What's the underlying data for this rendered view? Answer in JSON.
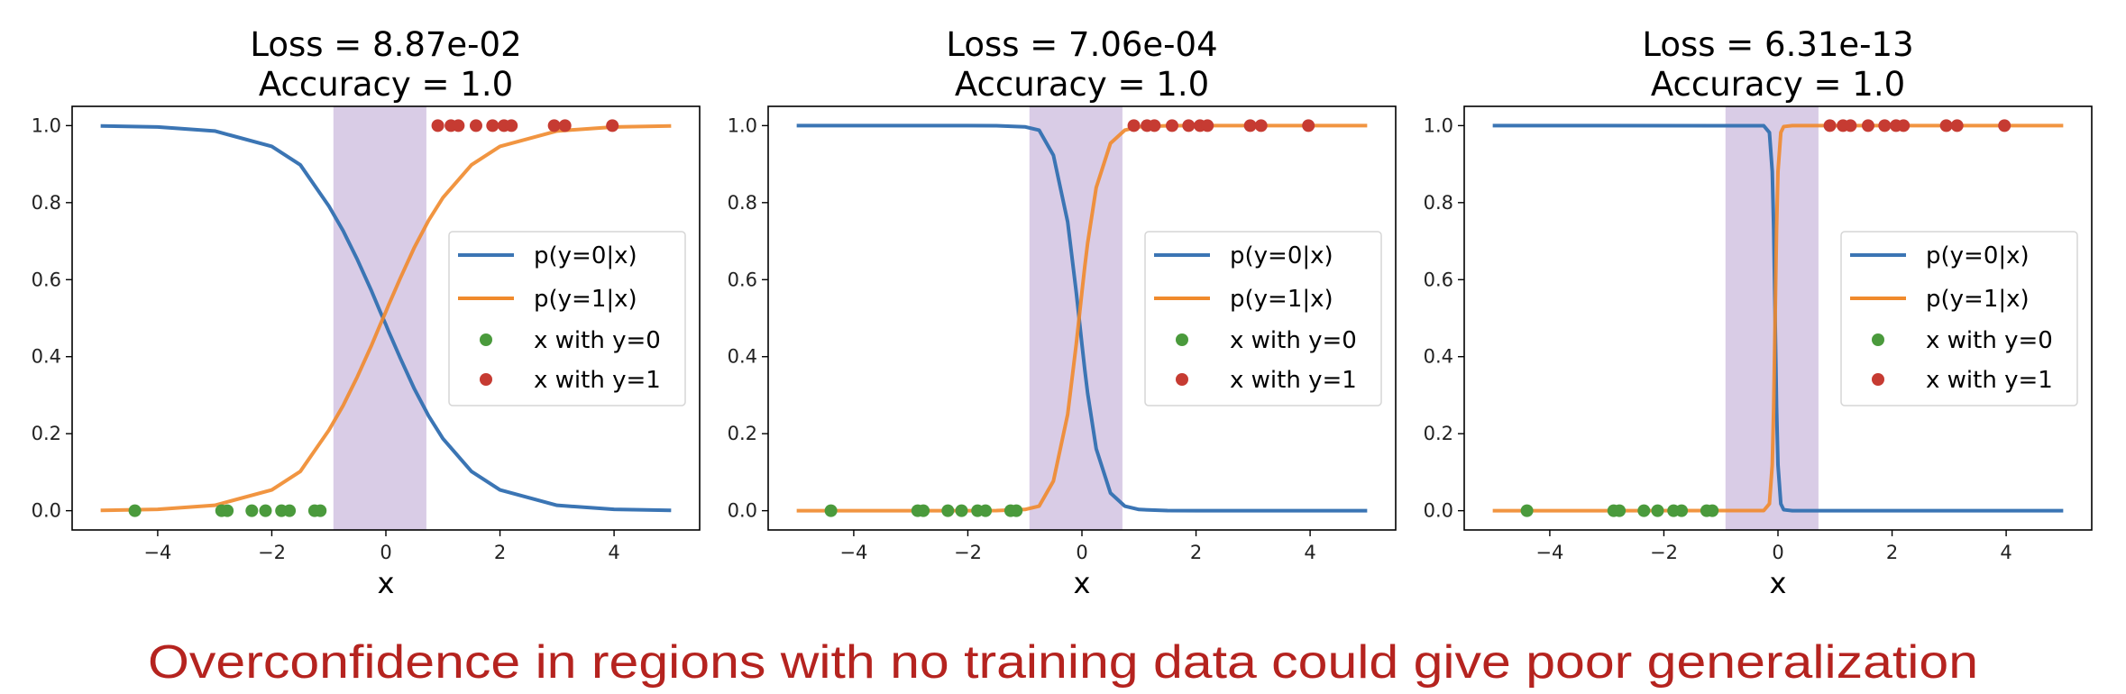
{
  "colors": {
    "p0": "#3b75b4",
    "p1": "#f08a2c",
    "class0": "#4a9a3c",
    "class1": "#c63b32",
    "shade": "#d9cce6",
    "caption": "#b5231f"
  },
  "caption": "Overconfidence in regions with no training data could give poor generalization",
  "chart_data": [
    {
      "type": "line",
      "title": [
        "Loss = 8.87e-02",
        "Accuracy = 1.0"
      ],
      "xlabel": "x",
      "ylabel": "",
      "xlim": [
        -5.5,
        5.5
      ],
      "ylim": [
        -0.05,
        1.05
      ],
      "xticks": [
        "−4",
        "−2",
        "0",
        "2",
        "4"
      ],
      "xtick_values": [
        -4,
        -2,
        0,
        2,
        4
      ],
      "yticks": [
        "0.0",
        "0.2",
        "0.4",
        "0.6",
        "0.8",
        "1.0"
      ],
      "ytick_values": [
        0,
        0.2,
        0.4,
        0.6,
        0.8,
        1.0
      ],
      "grid": false,
      "legend_placement": "center-right",
      "shaded_region": [
        -0.92,
        0.71
      ],
      "x": [
        -5,
        -4,
        -3,
        -2,
        -1.5,
        -1,
        -0.75,
        -0.5,
        -0.25,
        -0.1,
        -0.05,
        0,
        0.05,
        0.1,
        0.25,
        0.5,
        0.75,
        1,
        1.5,
        2,
        3,
        4,
        5
      ],
      "series": [
        {
          "name": "p(y=0|x)",
          "kind": "line",
          "values": [
            0.999,
            0.9966,
            0.986,
            0.946,
            0.898,
            0.791,
            0.727,
            0.652,
            0.57,
            0.517,
            0.5,
            0.483,
            0.465,
            0.448,
            0.397,
            0.316,
            0.246,
            0.187,
            0.102,
            0.054,
            0.014,
            0.0034,
            0.0009
          ]
        },
        {
          "name": "p(y=1|x)",
          "kind": "line",
          "values": [
            0.001,
            0.0034,
            0.014,
            0.054,
            0.102,
            0.209,
            0.273,
            0.348,
            0.43,
            0.483,
            0.5,
            0.517,
            0.535,
            0.552,
            0.603,
            0.684,
            0.754,
            0.813,
            0.898,
            0.946,
            0.986,
            0.9966,
            0.9991
          ]
        },
        {
          "name": "x with y=0",
          "kind": "scatter",
          "x": [
            -4.4,
            -2.88,
            -2.78,
            -2.35,
            -2.11,
            -1.83,
            -1.69,
            -1.25,
            -1.15
          ],
          "y": 0
        },
        {
          "name": "x with y=1",
          "kind": "scatter",
          "x": [
            0.91,
            1.14,
            1.27,
            1.58,
            1.87,
            2.07,
            2.2,
            2.95,
            3.14,
            3.97
          ],
          "y": 1
        }
      ]
    },
    {
      "type": "line",
      "title": [
        "Loss = 7.06e-04",
        "Accuracy = 1.0"
      ],
      "xlabel": "x",
      "ylabel": "",
      "xlim": [
        -5.5,
        5.5
      ],
      "ylim": [
        -0.05,
        1.05
      ],
      "xticks": [
        "−4",
        "−2",
        "0",
        "2",
        "4"
      ],
      "xtick_values": [
        -4,
        -2,
        0,
        2,
        4
      ],
      "yticks": [
        "0.0",
        "0.2",
        "0.4",
        "0.6",
        "0.8",
        "1.0"
      ],
      "ytick_values": [
        0,
        0.2,
        0.4,
        0.6,
        0.8,
        1.0
      ],
      "grid": false,
      "legend_placement": "center-right",
      "shaded_region": [
        -0.92,
        0.71
      ],
      "x": [
        -5,
        -2,
        -1.5,
        -1,
        -0.75,
        -0.5,
        -0.25,
        -0.1,
        -0.05,
        0,
        0.05,
        0.1,
        0.25,
        0.5,
        0.75,
        1,
        1.5,
        2,
        5
      ],
      "series": [
        {
          "name": "p(y=0|x)",
          "kind": "line",
          "values": [
            1.0,
            1.0,
            0.9998,
            0.9969,
            0.988,
            0.923,
            0.75,
            0.568,
            0.5,
            0.432,
            0.366,
            0.305,
            0.161,
            0.046,
            0.012,
            0.0031,
            0.0002,
            0.0,
            0.0
          ]
        },
        {
          "name": "p(y=1|x)",
          "kind": "line",
          "values": [
            0.0,
            0.0,
            0.0002,
            0.0031,
            0.012,
            0.077,
            0.25,
            0.432,
            0.5,
            0.568,
            0.634,
            0.695,
            0.839,
            0.954,
            0.988,
            0.9969,
            0.9998,
            1.0,
            1.0
          ]
        },
        {
          "name": "x with y=0",
          "kind": "scatter",
          "x": [
            -4.4,
            -2.88,
            -2.78,
            -2.35,
            -2.11,
            -1.83,
            -1.69,
            -1.25,
            -1.15
          ],
          "y": 0
        },
        {
          "name": "x with y=1",
          "kind": "scatter",
          "x": [
            0.91,
            1.14,
            1.27,
            1.58,
            1.87,
            2.07,
            2.2,
            2.95,
            3.14,
            3.97
          ],
          "y": 1
        }
      ]
    },
    {
      "type": "line",
      "title": [
        "Loss = 6.31e-13",
        "Accuracy = 1.0"
      ],
      "xlabel": "x",
      "ylabel": "",
      "xlim": [
        -5.5,
        5.5
      ],
      "ylim": [
        -0.05,
        1.05
      ],
      "xticks": [
        "−4",
        "−2",
        "0",
        "2",
        "4"
      ],
      "xtick_values": [
        -4,
        -2,
        0,
        2,
        4
      ],
      "yticks": [
        "0.0",
        "0.2",
        "0.4",
        "0.6",
        "0.8",
        "1.0"
      ],
      "ytick_values": [
        0,
        0.2,
        0.4,
        0.6,
        0.8,
        1.0
      ],
      "grid": false,
      "legend_placement": "center-right",
      "shaded_region": [
        -0.92,
        0.71
      ],
      "x": [
        -5,
        -0.25,
        -0.15,
        -0.1,
        -0.075,
        -0.05,
        -0.025,
        0,
        0.05,
        0.1,
        0.25,
        5
      ],
      "series": [
        {
          "name": "p(y=0|x)",
          "kind": "line",
          "values": [
            1.0,
            0.9997,
            0.982,
            0.881,
            0.731,
            0.5,
            0.269,
            0.119,
            0.018,
            0.0025,
            0.0,
            0.0
          ]
        },
        {
          "name": "p(y=1|x)",
          "kind": "line",
          "values": [
            0.0,
            0.0003,
            0.018,
            0.119,
            0.269,
            0.5,
            0.731,
            0.881,
            0.982,
            0.9975,
            1.0,
            1.0
          ]
        },
        {
          "name": "x with y=0",
          "kind": "scatter",
          "x": [
            -4.4,
            -2.88,
            -2.78,
            -2.35,
            -2.11,
            -1.83,
            -1.69,
            -1.25,
            -1.15
          ],
          "y": 0
        },
        {
          "name": "x with y=1",
          "kind": "scatter",
          "x": [
            0.91,
            1.14,
            1.27,
            1.58,
            1.87,
            2.07,
            2.2,
            2.95,
            3.14,
            3.97
          ],
          "y": 1
        }
      ]
    }
  ]
}
